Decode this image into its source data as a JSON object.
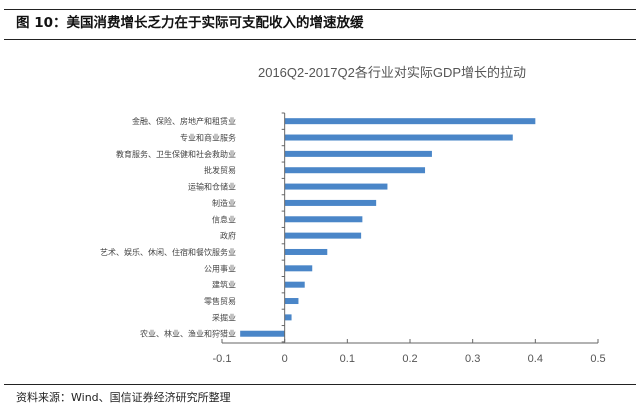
{
  "figure_title": "图 10：美国消费增长乏力在于实际可支配收入的增速放缓",
  "source": "资料来源：Wind、国信证券经济研究所整理",
  "chart_data": {
    "type": "bar",
    "orientation": "horizontal",
    "title": "2016Q2-2017Q2各行业对实际GDP增长的拉动",
    "xlabel": "",
    "ylabel": "",
    "categories": [
      "金融、保险、房地产和租赁业",
      "专业和商业服务",
      "教育服务、卫生保健和社会救助业",
      "批发贸易",
      "运输和仓储业",
      "制造业",
      "信息业",
      "政府",
      "艺术、娱乐、休闲、住宿和餐饮服务业",
      "公用事业",
      "建筑业",
      "零售贸易",
      "采掘业",
      "农业、林业、渔业和狩猎业"
    ],
    "values": [
      0.4,
      0.364,
      0.235,
      0.224,
      0.164,
      0.146,
      0.124,
      0.122,
      0.068,
      0.044,
      0.032,
      0.022,
      0.011,
      -0.071
    ],
    "xlim": [
      -0.1,
      0.5
    ],
    "xticks": [
      "-0.1",
      "0",
      "0.1",
      "0.2",
      "0.3",
      "0.4",
      "0.5"
    ],
    "grid": false,
    "bar_color": "#4a86c8"
  }
}
